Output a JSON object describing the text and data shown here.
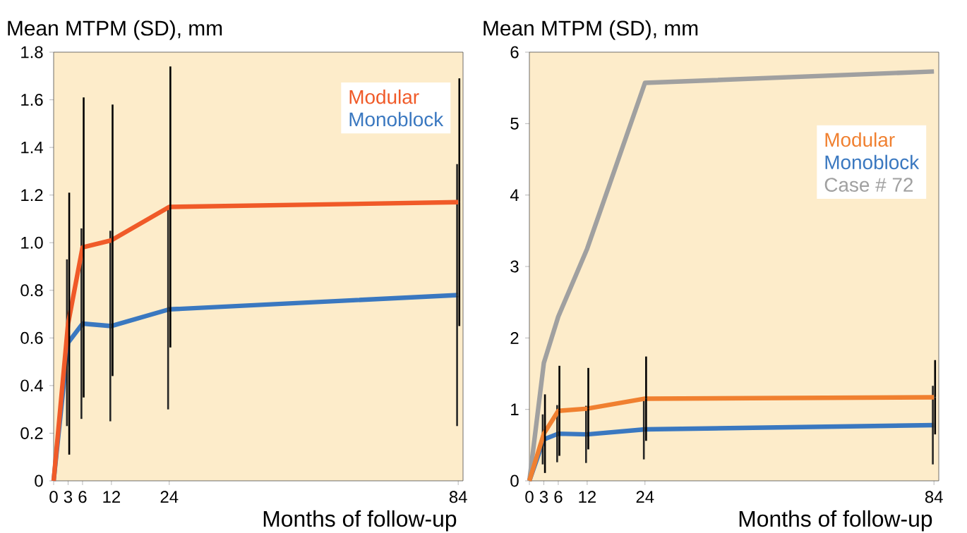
{
  "chart_data": [
    {
      "type": "line",
      "ylabel": "Mean MTPM (SD), mm",
      "xlabel": "Months of follow-up",
      "x": [
        0,
        3,
        6,
        12,
        24,
        84
      ],
      "xlim": [
        0,
        85
      ],
      "xticks": [
        0,
        3,
        6,
        12,
        24,
        84
      ],
      "ylim": [
        0,
        1.8
      ],
      "yticks": [
        0,
        0.2,
        0.4,
        0.6,
        0.8,
        {
          "value": 1,
          "label": "1.0"
        },
        1.2,
        1.4,
        1.6,
        1.8
      ],
      "series": [
        {
          "name": "Modular",
          "color": "#f05a28",
          "values": [
            0,
            0.66,
            0.98,
            1.01,
            1.15,
            1.17
          ],
          "errors": [
            null,
            0.55,
            0.63,
            0.57,
            0.59,
            0.52
          ]
        },
        {
          "name": "Monoblock",
          "color": "#3a78c0",
          "values": [
            0,
            0.58,
            0.66,
            0.65,
            0.72,
            0.78
          ],
          "errors": [
            null,
            0.35,
            0.4,
            0.4,
            0.42,
            0.55
          ]
        }
      ]
    },
    {
      "type": "line",
      "ylabel": "Mean MTPM (SD), mm",
      "xlabel": "Months of follow-up",
      "x": [
        0,
        3,
        6,
        12,
        24,
        84
      ],
      "xlim": [
        0,
        85
      ],
      "xticks": [
        0,
        3,
        6,
        12,
        24,
        84
      ],
      "ylim": [
        0,
        6
      ],
      "yticks": [
        0,
        1,
        2,
        3,
        4,
        5,
        6
      ],
      "series": [
        {
          "name": "Modular",
          "color": "#f08030",
          "values": [
            0,
            0.66,
            0.98,
            1.01,
            1.15,
            1.17
          ],
          "errors": [
            null,
            0.55,
            0.63,
            0.57,
            0.59,
            0.52
          ]
        },
        {
          "name": "Monoblock",
          "color": "#3a78c0",
          "values": [
            0,
            0.58,
            0.66,
            0.65,
            0.72,
            0.78
          ],
          "errors": [
            null,
            0.35,
            0.4,
            0.4,
            0.42,
            0.55
          ]
        },
        {
          "name": "Case # 72",
          "color": "#a0a0a0",
          "values": [
            0,
            1.65,
            2.3,
            3.25,
            5.57,
            5.73
          ]
        }
      ]
    }
  ]
}
